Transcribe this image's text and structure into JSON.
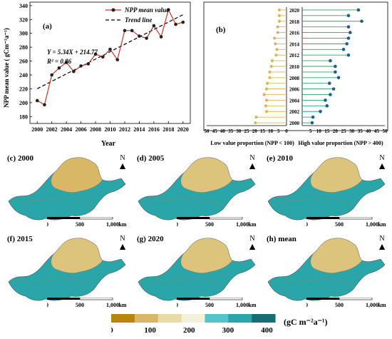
{
  "panel_a": {
    "letter": "(a)",
    "equation": "Y = 5.34X + 214.77",
    "r2": "R² = 0.86",
    "legend_npp": "NPP mean value",
    "legend_trend": "Trend line",
    "ylabel": "NPP mean value ( gCm⁻²a⁻¹)",
    "xlabel": "Year"
  },
  "panel_b": {
    "letter": "(b)",
    "left_label": "Low value proportion (NPP < 100)",
    "right_label": "High value proportion (NPP > 400)"
  },
  "maps": [
    {
      "label": "(c)  2000"
    },
    {
      "label": "(d)  2005"
    },
    {
      "label": "(e)  2010"
    },
    {
      "label": "(f)  2015"
    },
    {
      "label": "(g)  2020"
    },
    {
      "label": "(h)  mean"
    }
  ],
  "north_label": "N",
  "scale_labels": [
    "0",
    "500",
    "1,000"
  ],
  "scale_unit": "km",
  "legend": {
    "ticks": [
      "0",
      "100",
      "200",
      "300",
      "400"
    ],
    "unit": "(gC m⁻²a⁻¹)",
    "colors": [
      "#b8860b",
      "#d8b866",
      "#e8dba8",
      "#f3f0dc",
      "#54c4cc",
      "#2aa5a8",
      "#176e72"
    ]
  },
  "chart_data": [
    {
      "type": "line",
      "title": "(a)",
      "xlabel": "Year",
      "ylabel": "NPP mean value ( gCm⁻²a⁻¹)",
      "x": [
        2000,
        2001,
        2002,
        2003,
        2004,
        2005,
        2006,
        2007,
        2008,
        2009,
        2010,
        2011,
        2012,
        2013,
        2014,
        2015,
        2016,
        2017,
        2018,
        2019,
        2020
      ],
      "series": [
        {
          "name": "NPP mean value",
          "values": [
            203,
            197,
            240,
            250,
            258,
            245,
            253,
            256,
            270,
            266,
            277,
            262,
            304,
            304,
            296,
            293,
            311,
            295,
            334,
            313,
            316
          ],
          "color": "#c0392b"
        },
        {
          "name": "Trend line",
          "slope": 5.34,
          "intercept": 214.77
        }
      ],
      "xticks": [
        2000,
        2002,
        2004,
        2006,
        2008,
        2010,
        2012,
        2014,
        2016,
        2018,
        2020
      ],
      "yticks": [
        180,
        200,
        220,
        240,
        260,
        280,
        300,
        320,
        340
      ],
      "xlim": [
        1999,
        2021
      ],
      "ylim": [
        170,
        345
      ]
    },
    {
      "type": "bar",
      "title": "(b)",
      "categories": [
        2000,
        2001,
        2002,
        2003,
        2004,
        2005,
        2006,
        2007,
        2008,
        2009,
        2010,
        2011,
        2012,
        2013,
        2014,
        2015,
        2016,
        2017,
        2018,
        2019,
        2020
      ],
      "series": [
        {
          "name": "Low value proportion (NPP < 100)",
          "values": [
            19.5,
            19,
            12.5,
            13,
            12.5,
            14,
            12.5,
            12,
            10.5,
            10.5,
            9.5,
            9,
            6.5,
            6,
            7,
            7.5,
            5.5,
            5.5,
            4.5,
            4.5,
            4.5
          ],
          "color": "#d9b65a"
        },
        {
          "name": "High value proportion (NPP > 400)",
          "values": [
            6,
            6.5,
            11,
            15,
            14,
            17,
            19,
            16.5,
            22,
            20,
            20,
            17,
            28,
            25,
            27,
            28,
            29,
            28,
            36,
            28,
            34
          ],
          "color": "#2ea36b"
        }
      ],
      "xticks_left": [
        50,
        45,
        40,
        35,
        30,
        25,
        20,
        15,
        10,
        5,
        0
      ],
      "xticks_right": [
        5,
        10,
        15,
        20,
        25,
        30,
        35,
        40,
        45,
        50
      ],
      "xlim": [
        0,
        50
      ],
      "ytick_labels": [
        "2000",
        "2002",
        "2004",
        "2006",
        "2008",
        "2010",
        "2012",
        "2014",
        "2016",
        "2018",
        "2020"
      ]
    }
  ]
}
